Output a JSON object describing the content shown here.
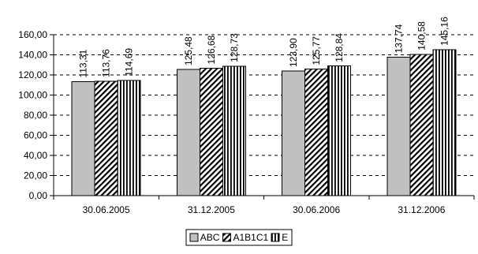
{
  "chart_data": {
    "type": "bar",
    "title": "",
    "xlabel": "",
    "ylabel": "",
    "categories": [
      "30.06.2005",
      "31.12.2005",
      "30.06.2006",
      "31.12.2006"
    ],
    "series": [
      {
        "name": "ABC",
        "values": [
          113.31,
          125.48,
          123.9,
          137.74
        ],
        "labels": [
          "113,31",
          "125,48",
          "123,90",
          "137,74"
        ],
        "fill": "#c0c0c0",
        "pattern": "solid"
      },
      {
        "name": "A1B1C1",
        "values": [
          113.76,
          126.68,
          125.77,
          140.58
        ],
        "labels": [
          "113,76",
          "126,68",
          "125,77",
          "140,58"
        ],
        "fill": "#ffffff",
        "pattern": "diagonal-hatch"
      },
      {
        "name": "E",
        "values": [
          114.69,
          128.73,
          128.84,
          145.16
        ],
        "labels": [
          "114,69",
          "128,73",
          "128,84",
          "145,16"
        ],
        "fill": "#ffffff",
        "pattern": "vertical-stripes"
      }
    ],
    "ylim": [
      0,
      160
    ],
    "yticks": [
      0,
      20,
      40,
      60,
      80,
      100,
      120,
      140,
      160
    ],
    "ytick_labels": [
      "0,00",
      "20,00",
      "40,00",
      "60,00",
      "80,00",
      "100,00",
      "120,00",
      "140,00",
      "160,00"
    ],
    "grid": "horizontal dashed",
    "legend_position": "bottom"
  }
}
